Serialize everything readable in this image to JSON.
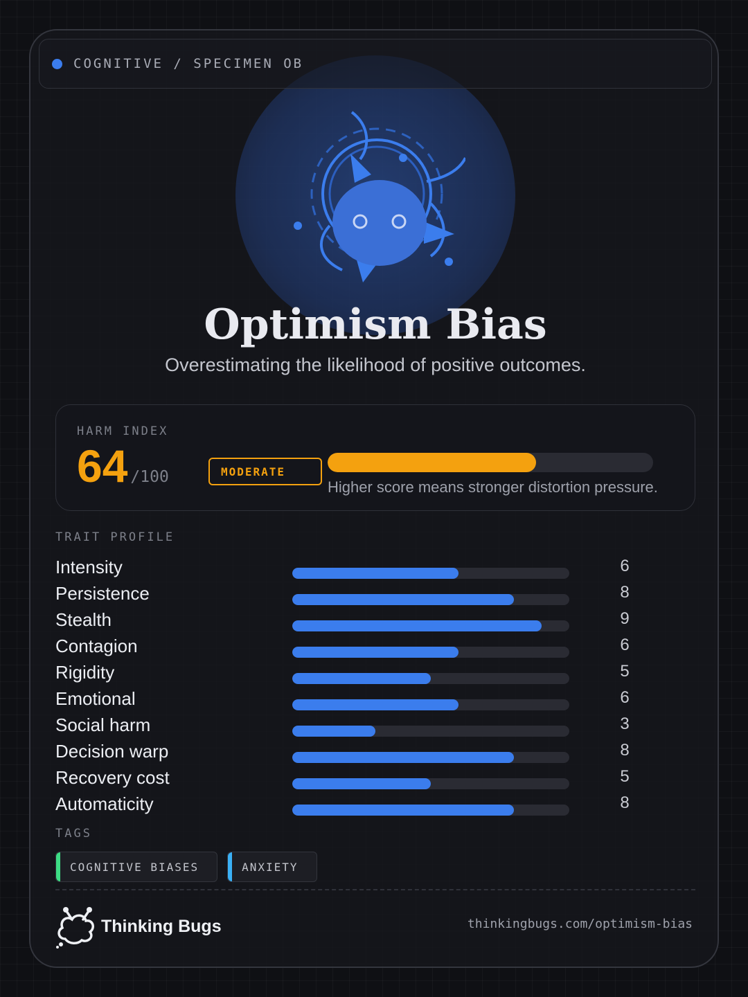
{
  "header": {
    "breadcrumb": "COGNITIVE / SPECIMEN OB",
    "status_dot_color": "#3b7ded"
  },
  "hero": {
    "icon": "bug-mascot-icon",
    "title": "Optimism Bias",
    "subtitle": "Overestimating the likelihood of positive outcomes."
  },
  "harm_index": {
    "label": "HARM INDEX",
    "score": "64",
    "max": "/100",
    "score_fraction": 0.64,
    "level": "MODERATE",
    "note": "Higher score means stronger distortion pressure.",
    "accent_color": "#f4a10f"
  },
  "traits": {
    "label": "TRAIT PROFILE",
    "bar_color": "#3b7ded",
    "scale_max": 10,
    "items": [
      {
        "name": "Intensity",
        "value": 6
      },
      {
        "name": "Persistence",
        "value": 8
      },
      {
        "name": "Stealth",
        "value": 9
      },
      {
        "name": "Contagion",
        "value": 6
      },
      {
        "name": "Rigidity",
        "value": 5
      },
      {
        "name": "Emotional",
        "value": 6
      },
      {
        "name": "Social harm",
        "value": 3
      },
      {
        "name": "Decision warp",
        "value": 8
      },
      {
        "name": "Recovery cost",
        "value": 5
      },
      {
        "name": "Automaticity",
        "value": 8
      }
    ]
  },
  "tags": {
    "label": "TAGS",
    "items": [
      {
        "label": "COGNITIVE BIASES",
        "color": "#3ddc84"
      },
      {
        "label": "ANXIETY",
        "color": "#3ab0f5"
      }
    ]
  },
  "footer": {
    "brand_icon": "thinking-bugs-logo-icon",
    "brand_name": "Thinking Bugs",
    "url": "thinkingbugs.com/optimism-bias"
  }
}
